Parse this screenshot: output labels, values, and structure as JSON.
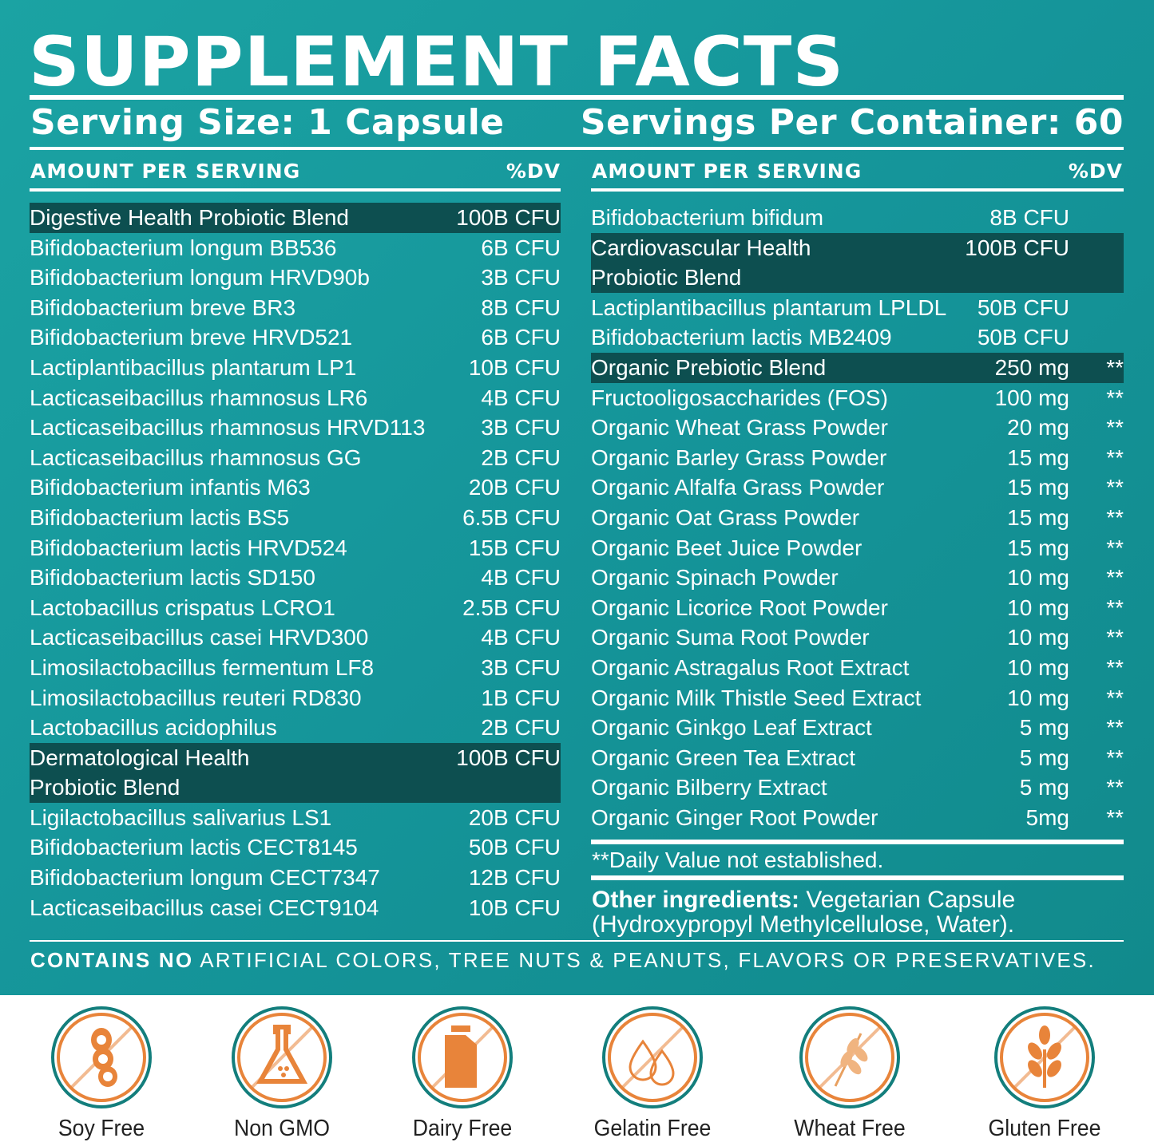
{
  "title": "SUPPLEMENT FACTS",
  "serving_size": "Serving Size: 1 Capsule",
  "servings_per_container": "Servings Per Container: 60",
  "col_header": {
    "amount": "AMOUNT PER SERVING",
    "dv": "%DV"
  },
  "left_rows": [
    {
      "name": "Digestive Health Probiotic Blend",
      "amount": "100B CFU",
      "blend": true
    },
    {
      "name": "Bifidobacterium longum BB536",
      "amount": "6B CFU"
    },
    {
      "name": "Bifidobacterium longum HRVD90b",
      "amount": "3B CFU"
    },
    {
      "name": "Bifidobacterium breve BR3",
      "amount": "8B CFU"
    },
    {
      "name": "Bifidobacterium breve HRVD521",
      "amount": "6B CFU"
    },
    {
      "name": "Lactiplantibacillus plantarum LP1",
      "amount": "10B CFU"
    },
    {
      "name": "Lacticaseibacillus rhamnosus LR6",
      "amount": "4B CFU"
    },
    {
      "name": "Lacticaseibacillus rhamnosus HRVD113",
      "amount": "3B CFU"
    },
    {
      "name": "Lacticaseibacillus rhamnosus GG",
      "amount": "2B CFU"
    },
    {
      "name": "Bifidobacterium infantis M63",
      "amount": "20B CFU"
    },
    {
      "name": "Bifidobacterium lactis BS5",
      "amount": "6.5B CFU"
    },
    {
      "name": "Bifidobacterium lactis HRVD524",
      "amount": "15B CFU"
    },
    {
      "name": "Bifidobacterium lactis SD150",
      "amount": "4B CFU"
    },
    {
      "name": "Lactobacillus crispatus LCRO1",
      "amount": "2.5B CFU"
    },
    {
      "name": "Lacticaseibacillus casei HRVD300",
      "amount": "4B CFU"
    },
    {
      "name": "Limosilactobacillus fermentum LF8",
      "amount": "3B CFU"
    },
    {
      "name": "Limosilactobacillus reuteri RD830",
      "amount": "1B CFU"
    },
    {
      "name": "Lactobacillus acidophilus",
      "amount": "2B CFU"
    },
    {
      "name": "Dermatological Health\nProbiotic Blend",
      "amount": "100B CFU",
      "blend": true
    },
    {
      "name": "Ligilactobacillus salivarius LS1",
      "amount": "20B CFU"
    },
    {
      "name": "Bifidobacterium lactis CECT8145",
      "amount": "50B CFU"
    },
    {
      "name": "Bifidobacterium longum CECT7347",
      "amount": "12B CFU"
    },
    {
      "name": "Lacticaseibacillus casei CECT9104",
      "amount": "10B CFU"
    }
  ],
  "right_rows": [
    {
      "name": "Bifidobacterium bifidum",
      "amount": "8B CFU",
      "dv": ""
    },
    {
      "name": "Cardiovascular Health\nProbiotic Blend",
      "amount": "100B CFU",
      "dv": "",
      "blend": true
    },
    {
      "name": "Lactiplantibacillus plantarum LPLDL",
      "amount": "50B CFU",
      "dv": ""
    },
    {
      "name": "Bifidobacterium lactis MB2409",
      "amount": "50B CFU",
      "dv": ""
    },
    {
      "name": "Organic Prebiotic Blend",
      "amount": "250 mg",
      "dv": "**",
      "blend": true
    },
    {
      "name": "Fructooligosaccharides (FOS)",
      "amount": "100 mg",
      "dv": "**"
    },
    {
      "name": "Organic Wheat Grass Powder",
      "amount": "20 mg",
      "dv": "**"
    },
    {
      "name": "Organic Barley Grass Powder",
      "amount": "15 mg",
      "dv": "**"
    },
    {
      "name": "Organic Alfalfa Grass Powder",
      "amount": "15 mg",
      "dv": "**"
    },
    {
      "name": "Organic Oat Grass Powder",
      "amount": "15 mg",
      "dv": "**"
    },
    {
      "name": "Organic Beet Juice Powder",
      "amount": "15 mg",
      "dv": "**"
    },
    {
      "name": "Organic Spinach Powder",
      "amount": "10 mg",
      "dv": "**"
    },
    {
      "name": "Organic Licorice Root Powder",
      "amount": "10 mg",
      "dv": "**"
    },
    {
      "name": "Organic Suma Root Powder",
      "amount": "10 mg",
      "dv": "**"
    },
    {
      "name": "Organic Astragalus Root Extract",
      "amount": "10 mg",
      "dv": "**"
    },
    {
      "name": "Organic Milk Thistle Seed Extract",
      "amount": "10 mg",
      "dv": "**"
    },
    {
      "name": "Organic Ginkgo Leaf Extract",
      "amount": "5 mg",
      "dv": "**"
    },
    {
      "name": "Organic Green Tea Extract",
      "amount": "5 mg",
      "dv": "**"
    },
    {
      "name": "Organic Bilberry Extract",
      "amount": "5 mg",
      "dv": "**"
    },
    {
      "name": "Organic Ginger Root Powder",
      "amount": "5mg",
      "dv": "**"
    }
  ],
  "dv_note": "**Daily Value not established.",
  "other_ingredients": {
    "label": "Other ingredients:",
    "text": " Vegetarian Capsule (Hydroxypropyl Methylcellulose, Water)."
  },
  "contains": {
    "bold": "CONTAINS NO",
    "text": " ARTIFICIAL COLORS, TREE NUTS & PEANUTS, FLAVORS OR PRESERVATIVES."
  },
  "badges": [
    {
      "label": "Soy Free",
      "icon": "soybean-icon"
    },
    {
      "label": "Non GMO",
      "icon": "flask-icon"
    },
    {
      "label": "Dairy Free",
      "icon": "milk-carton-icon"
    },
    {
      "label": "Gelatin Free",
      "icon": "droplets-icon"
    },
    {
      "label": "Wheat Free",
      "icon": "wheat-icon"
    },
    {
      "label": "Gluten Free",
      "icon": "grain-icon"
    }
  ],
  "colors": {
    "panel": "#15959a",
    "blend_highlight": "#0d4f50",
    "badge_ring": "#137e7c",
    "badge_orange": "#e8843a"
  }
}
